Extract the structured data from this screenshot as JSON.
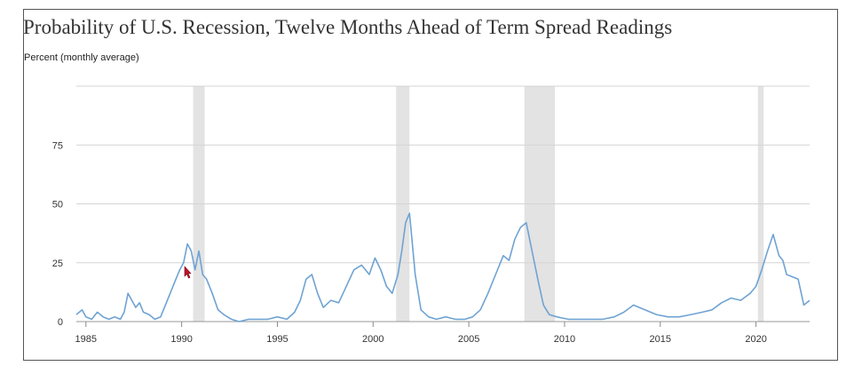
{
  "chart_data": {
    "type": "line",
    "title": "Probability of U.S. Recession, Twelve Months Ahead of Term Spread Readings",
    "subtitle": "Percent (monthly average)",
    "xlim": [
      1984.5,
      2022.8
    ],
    "ylim": [
      0,
      100
    ],
    "y_ticks": [
      0,
      25,
      50,
      75
    ],
    "y_tick_labels": [
      "0",
      "25",
      "50",
      "75"
    ],
    "x_ticks": [
      1985,
      1990,
      1995,
      2000,
      2005,
      2010,
      2015,
      2020
    ],
    "x_tick_labels": [
      "1985",
      "1990",
      "1995",
      "2000",
      "2005",
      "2010",
      "2015",
      "2020"
    ],
    "grid": "horizontal",
    "line_color": "#6fa3d3",
    "shade_color": "#e3e3e3",
    "recession_bands": [
      [
        1990.6,
        1991.2
      ],
      [
        2001.2,
        2001.9
      ],
      [
        2007.9,
        2009.5
      ],
      [
        2020.1,
        2020.4
      ]
    ],
    "series": [
      {
        "x": [
          1984.5,
          1984.8,
          1985.0,
          1985.3,
          1985.6,
          1985.9,
          1986.2,
          1986.5,
          1986.8,
          1987.0,
          1987.2,
          1987.4,
          1987.6,
          1987.8,
          1988.0,
          1988.3,
          1988.6,
          1988.9,
          1989.2,
          1989.5,
          1989.7,
          1989.9,
          1990.1,
          1990.3,
          1990.5,
          1990.7,
          1990.9,
          1991.1,
          1991.3,
          1991.6,
          1991.9,
          1992.2,
          1992.6,
          1993.0,
          1993.5,
          1994.0,
          1994.5,
          1995.0,
          1995.5,
          1995.9,
          1996.2,
          1996.5,
          1996.8,
          1997.1,
          1997.4,
          1997.8,
          1998.2,
          1998.6,
          1999.0,
          1999.4,
          1999.8,
          2000.1,
          2000.4,
          2000.7,
          2001.0,
          2001.3,
          2001.5,
          2001.7,
          2001.9,
          2002.2,
          2002.5,
          2002.9,
          2003.3,
          2003.8,
          2004.3,
          2004.8,
          2005.2,
          2005.6,
          2006.0,
          2006.4,
          2006.8,
          2007.1,
          2007.4,
          2007.7,
          2008.0,
          2008.3,
          2008.6,
          2008.9,
          2009.2,
          2009.6,
          2010.2,
          2011.0,
          2012.0,
          2012.6,
          2013.1,
          2013.6,
          2014.2,
          2014.8,
          2015.4,
          2016.0,
          2016.6,
          2017.2,
          2017.7,
          2018.2,
          2018.7,
          2019.2,
          2019.7,
          2020.0,
          2020.3,
          2020.6,
          2020.9,
          2021.2,
          2021.4,
          2021.6,
          2021.9,
          2022.2,
          2022.5,
          2022.8
        ],
        "y": [
          3,
          5,
          2,
          1,
          4,
          2,
          1,
          2,
          1,
          4,
          12,
          9,
          6,
          8,
          4,
          3,
          1,
          2,
          8,
          14,
          18,
          22,
          25,
          33,
          30,
          22,
          30,
          20,
          18,
          12,
          5,
          3,
          1,
          0,
          1,
          1,
          1,
          2,
          1,
          4,
          9,
          18,
          20,
          12,
          6,
          9,
          8,
          15,
          22,
          24,
          20,
          27,
          22,
          15,
          12,
          20,
          30,
          42,
          46,
          20,
          5,
          2,
          1,
          2,
          1,
          1,
          2,
          5,
          12,
          20,
          28,
          26,
          35,
          40,
          42,
          30,
          18,
          7,
          3,
          2,
          1,
          1,
          1,
          2,
          4,
          7,
          5,
          3,
          2,
          2,
          3,
          4,
          5,
          8,
          10,
          9,
          12,
          15,
          22,
          30,
          37,
          28,
          26,
          20,
          19,
          18,
          7,
          9
        ]
      }
    ]
  }
}
